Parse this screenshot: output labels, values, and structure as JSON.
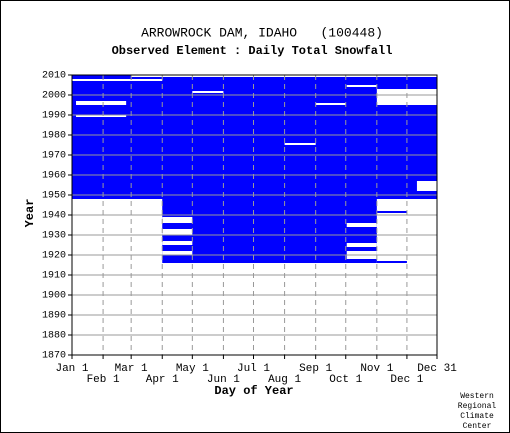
{
  "chart_data": {
    "type": "coverage",
    "title": "ARROWROCK DAM, IDAHO   (100448)",
    "subtitle": "Observed Element : Daily Total Snowfall",
    "xlabel": "Day of Year",
    "ylabel": "Year",
    "credit": [
      "Western",
      "Regional",
      "Climate",
      "Center"
    ],
    "color": "#0000ff",
    "gap_color": "#ffffff",
    "grid": true,
    "xlim": [
      1,
      365
    ],
    "ylim": [
      1870,
      2010
    ],
    "xticks": [
      {
        "value": 1,
        "label": "Jan 1"
      },
      {
        "value": 32,
        "label": "Feb 1"
      },
      {
        "value": 60,
        "label": "Mar 1"
      },
      {
        "value": 91,
        "label": "Apr 1"
      },
      {
        "value": 121,
        "label": "May 1"
      },
      {
        "value": 152,
        "label": "Jun 1"
      },
      {
        "value": 182,
        "label": "Jul 1"
      },
      {
        "value": 213,
        "label": "Aug 1"
      },
      {
        "value": 244,
        "label": "Sep 1"
      },
      {
        "value": 274,
        "label": "Oct 1"
      },
      {
        "value": 305,
        "label": "Nov 1"
      },
      {
        "value": 335,
        "label": "Dec 1"
      },
      {
        "value": 365,
        "label": "Dec 31"
      }
    ],
    "yticks": [
      1870,
      1880,
      1890,
      1900,
      1910,
      1920,
      1930,
      1940,
      1950,
      1960,
      1970,
      1980,
      1990,
      2000,
      2010
    ],
    "records": [
      {
        "days": [
          1,
          365
        ],
        "years": [
          1948,
          2009
        ]
      },
      {
        "days": [
          91,
          305
        ],
        "years": [
          1916,
          1948
        ]
      },
      {
        "days": [
          305,
          335
        ],
        "years": [
          1916,
          1917
        ]
      },
      {
        "days": [
          305,
          335
        ],
        "years": [
          1941,
          1942
        ]
      },
      {
        "days": [
          1,
          60
        ],
        "years": [
          2009,
          2010
        ]
      }
    ],
    "gaps": [
      {
        "days": [
          91,
          121
        ],
        "years": [
          1920,
          1922
        ]
      },
      {
        "days": [
          91,
          121
        ],
        "years": [
          1925,
          1927
        ]
      },
      {
        "days": [
          91,
          121
        ],
        "years": [
          1930,
          1933
        ]
      },
      {
        "days": [
          91,
          121
        ],
        "years": [
          1936,
          1939
        ]
      },
      {
        "days": [
          275,
          305
        ],
        "years": [
          1918,
          1922
        ]
      },
      {
        "days": [
          275,
          305
        ],
        "years": [
          1924,
          1926
        ]
      },
      {
        "days": [
          275,
          305
        ],
        "years": [
          1934,
          1936
        ]
      },
      {
        "days": [
          121,
          152
        ],
        "years": [
          2001,
          2002
        ]
      },
      {
        "days": [
          213,
          244
        ],
        "years": [
          1975,
          1976
        ]
      },
      {
        "days": [
          244,
          274
        ],
        "years": [
          1995,
          1996
        ]
      },
      {
        "days": [
          275,
          305
        ],
        "years": [
          2004,
          2005
        ]
      },
      {
        "days": [
          1,
          91
        ],
        "years": [
          2007,
          2008
        ]
      },
      {
        "days": [
          5,
          55
        ],
        "years": [
          1995,
          1997
        ]
      },
      {
        "days": [
          5,
          55
        ],
        "years": [
          1989,
          1990
        ]
      },
      {
        "days": [
          345,
          365
        ],
        "years": [
          1952,
          1957
        ]
      },
      {
        "days": [
          305,
          365
        ],
        "years": [
          1995,
          2003
        ]
      }
    ]
  }
}
